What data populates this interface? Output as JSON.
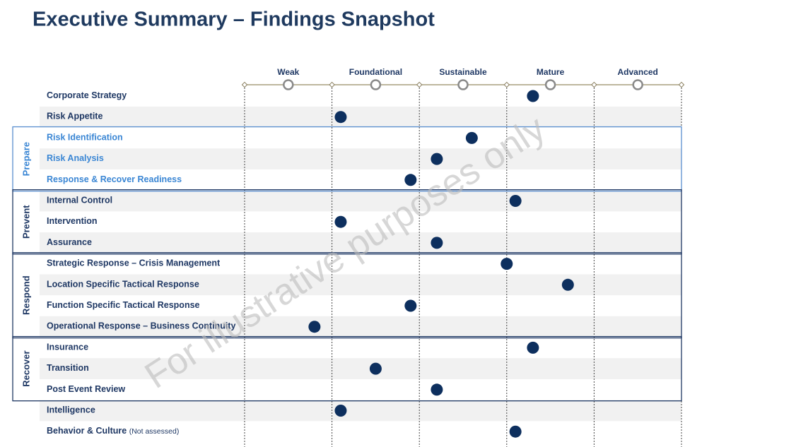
{
  "chart_data": {
    "type": "dot",
    "title": "Executive Summary – Findings Snapshot",
    "watermark": "For illustrative purposes only",
    "levels": [
      "Weak",
      "Foundational",
      "Sustainable",
      "Mature",
      "Advanced"
    ],
    "xlim": [
      0,
      5
    ],
    "color": "#0d2f5e",
    "rows": [
      {
        "label": "Corporate Strategy",
        "value": 3.3
      },
      {
        "label": "Risk Appetite",
        "value": 1.1
      },
      {
        "label": "Risk Identification",
        "value": 2.6
      },
      {
        "label": "Risk Analysis",
        "value": 2.2
      },
      {
        "label": "Response & Recover Readiness",
        "value": 1.9
      },
      {
        "label": "Internal Control",
        "value": 3.1
      },
      {
        "label": "Intervention",
        "value": 1.1
      },
      {
        "label": "Assurance",
        "value": 2.2
      },
      {
        "label": "Strategic Response – Crisis Management",
        "value": 3.0
      },
      {
        "label": "Location  Specific Tactical Response",
        "value": 3.7
      },
      {
        "label": "Function  Specific Tactical Response",
        "value": 1.9
      },
      {
        "label": "Operational Response – Business Continuity",
        "value": 0.8
      },
      {
        "label": "Insurance",
        "value": 3.3
      },
      {
        "label": "Transition",
        "value": 1.5
      },
      {
        "label": "Post Event Review",
        "value": 2.2
      },
      {
        "label": "Intelligence",
        "value": 1.1
      },
      {
        "label": "Behavior & Culture",
        "note": "(Not assessed)",
        "value": 3.1
      }
    ],
    "groups": [
      {
        "name": "Prepare",
        "first": 2,
        "last": 4
      },
      {
        "name": "Prevent",
        "first": 5,
        "last": 7
      },
      {
        "name": "Respond",
        "first": 8,
        "last": 11
      },
      {
        "name": "Recover",
        "first": 12,
        "last": 14
      }
    ]
  }
}
